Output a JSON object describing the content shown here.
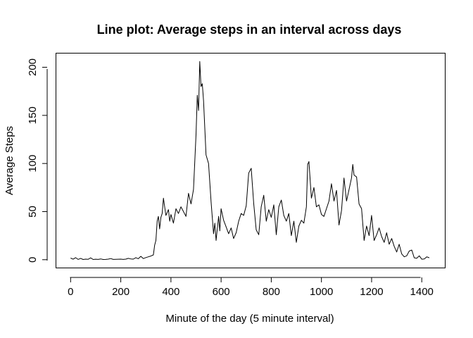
{
  "chart_data": {
    "type": "line",
    "title": "Line plot: Average steps in an interval across days",
    "xlabel": "Minute of the day (5 minute interval)",
    "ylabel": "Average Steps",
    "xlim": [
      -57,
      1492
    ],
    "ylim": [
      -8.2,
      214.3
    ],
    "xticks": [
      0,
      200,
      400,
      600,
      800,
      1000,
      1200,
      1400
    ],
    "xtick_labels": [
      "0",
      "200",
      "400",
      "600",
      "800",
      "1000",
      "1200",
      "1400"
    ],
    "yticks": [
      0,
      50,
      100,
      150,
      200
    ],
    "ytick_labels": [
      "0",
      "50",
      "100",
      "150",
      "200"
    ],
    "grid": false,
    "legend": "none",
    "line_color": "#000000",
    "series": [
      {
        "x": [
          0,
          10,
          20,
          30,
          40,
          50,
          60,
          70,
          80,
          90,
          100,
          110,
          120,
          130,
          140,
          150,
          160,
          170,
          180,
          190,
          200,
          210,
          220,
          230,
          240,
          250,
          260,
          270,
          280,
          290,
          300,
          310,
          320,
          330,
          335,
          340,
          345,
          350,
          355,
          360,
          365,
          370,
          380,
          390,
          395,
          400,
          410,
          420,
          430,
          440,
          450,
          460,
          470,
          480,
          490,
          500,
          505,
          510,
          515,
          520,
          525,
          530,
          540,
          550,
          560,
          570,
          575,
          580,
          590,
          595,
          600,
          610,
          620,
          630,
          640,
          650,
          660,
          670,
          680,
          690,
          700,
          710,
          720,
          730,
          740,
          750,
          760,
          770,
          780,
          790,
          800,
          810,
          820,
          830,
          840,
          850,
          860,
          870,
          880,
          890,
          900,
          910,
          920,
          930,
          940,
          945,
          950,
          960,
          970,
          980,
          990,
          1000,
          1010,
          1020,
          1030,
          1040,
          1050,
          1060,
          1070,
          1080,
          1090,
          1100,
          1110,
          1120,
          1125,
          1130,
          1140,
          1150,
          1160,
          1170,
          1180,
          1190,
          1200,
          1210,
          1220,
          1230,
          1240,
          1250,
          1260,
          1270,
          1280,
          1290,
          1300,
          1310,
          1320,
          1330,
          1340,
          1350,
          1360,
          1370,
          1380,
          1390,
          1400,
          1410,
          1420,
          1430
        ],
        "y": [
          1.7,
          0.5,
          2.1,
          0.3,
          1.4,
          0.2,
          0.6,
          0.4,
          1.9,
          0.2,
          0.5,
          0.3,
          0.8,
          0.2,
          0.3,
          0.6,
          1.2,
          0.3,
          0.4,
          0.5,
          0.6,
          0.3,
          0.6,
          1.4,
          0.8,
          0.6,
          2.1,
          1.0,
          3.5,
          1.2,
          2.2,
          3.0,
          3.8,
          5.0,
          15.0,
          20.0,
          40.0,
          45.0,
          32.0,
          44.0,
          48.0,
          64.0,
          46.0,
          52.0,
          40.0,
          47.0,
          38.0,
          53.0,
          48.0,
          55.0,
          50.0,
          45.0,
          69.0,
          58.0,
          73.0,
          130.0,
          171.0,
          155.0,
          206.0,
          180.0,
          183.0,
          165.0,
          109.0,
          100.0,
          60.0,
          27.0,
          38.0,
          20.0,
          45.0,
          30.0,
          53.0,
          41.0,
          34.0,
          27.0,
          33.0,
          22.0,
          28.0,
          40.0,
          48.0,
          46.0,
          56.0,
          90.0,
          95.0,
          58.0,
          31.0,
          26.0,
          55.0,
          67.0,
          40.0,
          52.0,
          44.0,
          57.0,
          26.0,
          55.0,
          62.0,
          46.0,
          40.0,
          48.0,
          25.0,
          40.0,
          18.0,
          35.0,
          41.0,
          38.0,
          55.0,
          99.0,
          102.0,
          64.0,
          75.0,
          55.0,
          57.0,
          47.0,
          45.0,
          53.0,
          61.0,
          79.0,
          61.0,
          72.0,
          36.0,
          51.0,
          85.0,
          61.0,
          73.0,
          85.0,
          99.0,
          88.0,
          86.0,
          58.0,
          53.0,
          20.0,
          35.0,
          25.0,
          46.0,
          20.0,
          26.0,
          33.0,
          24.0,
          18.0,
          28.0,
          16.0,
          22.0,
          14.0,
          8.0,
          16.0,
          6.0,
          3.0,
          4.0,
          9.0,
          10.0,
          2.0,
          1.5,
          4.0,
          0.5,
          0.8,
          3.0,
          2.0
        ]
      }
    ]
  }
}
